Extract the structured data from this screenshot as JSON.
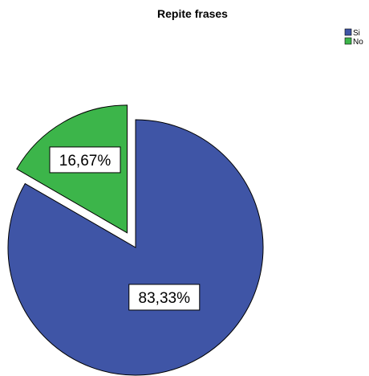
{
  "chart_data": {
    "type": "pie",
    "title": "Repite frases",
    "categories": [
      "Si",
      "No"
    ],
    "values": [
      83.33,
      16.67
    ],
    "labels": [
      "83,33%",
      "16,67%"
    ],
    "colors": [
      "#3f55a6",
      "#3cb54a"
    ],
    "exploded": [
      "No"
    ],
    "legend": {
      "position": "top-right",
      "entries": [
        "Si",
        "No"
      ]
    }
  }
}
